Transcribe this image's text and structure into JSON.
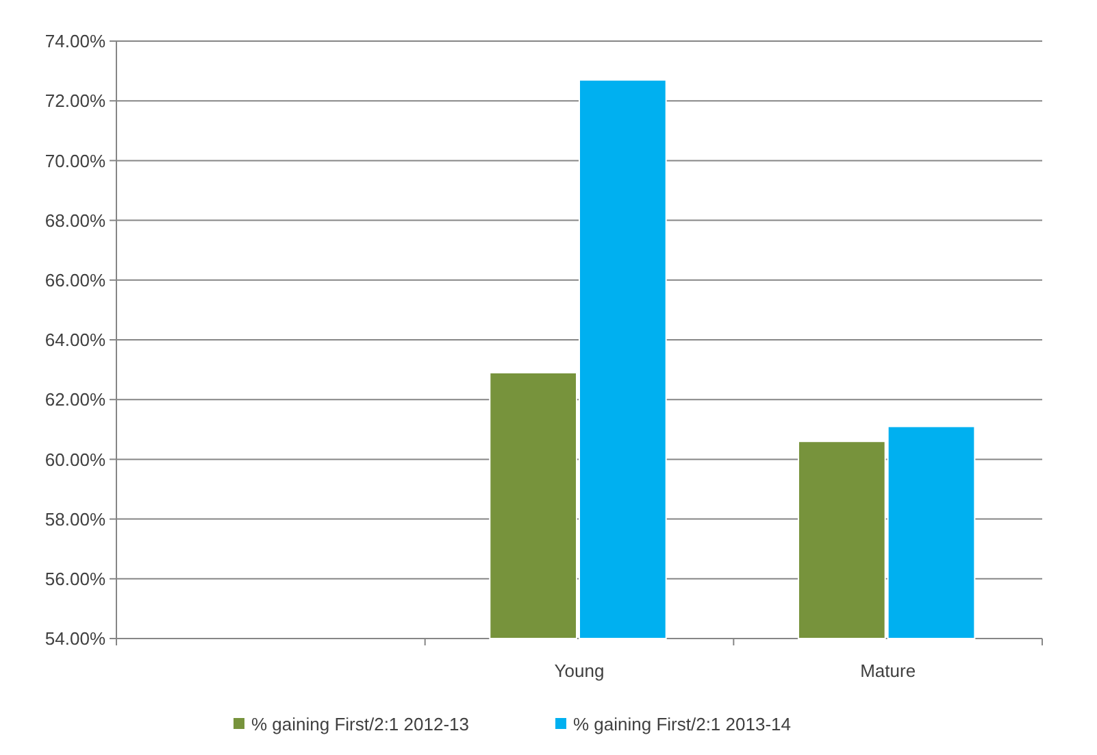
{
  "chart_data": {
    "type": "bar",
    "categories": [
      null,
      "Young",
      "Mature"
    ],
    "series": [
      {
        "name": "% gaining First/2:1 2012-13",
        "color": "#77933c",
        "values": [
          null,
          62.9,
          60.6
        ]
      },
      {
        "name": "% gaining First/2:1 2013-14",
        "color": "#00b0f0",
        "values": [
          null,
          72.7,
          61.1
        ]
      }
    ],
    "ylim": [
      54,
      74
    ],
    "yticks": [
      {
        "value": 54,
        "label": "54.00%"
      },
      {
        "value": 56,
        "label": "56.00%"
      },
      {
        "value": 58,
        "label": "58.00%"
      },
      {
        "value": 60,
        "label": "60.00%"
      },
      {
        "value": 62,
        "label": "62.00%"
      },
      {
        "value": 64,
        "label": "64.00%"
      },
      {
        "value": 66,
        "label": "66.00%"
      },
      {
        "value": 68,
        "label": "68.00%"
      },
      {
        "value": 70,
        "label": "70.00%"
      },
      {
        "value": 72,
        "label": "72.00%"
      },
      {
        "value": 74,
        "label": "74.00%"
      }
    ],
    "grid": "y",
    "legend": "bottom"
  }
}
